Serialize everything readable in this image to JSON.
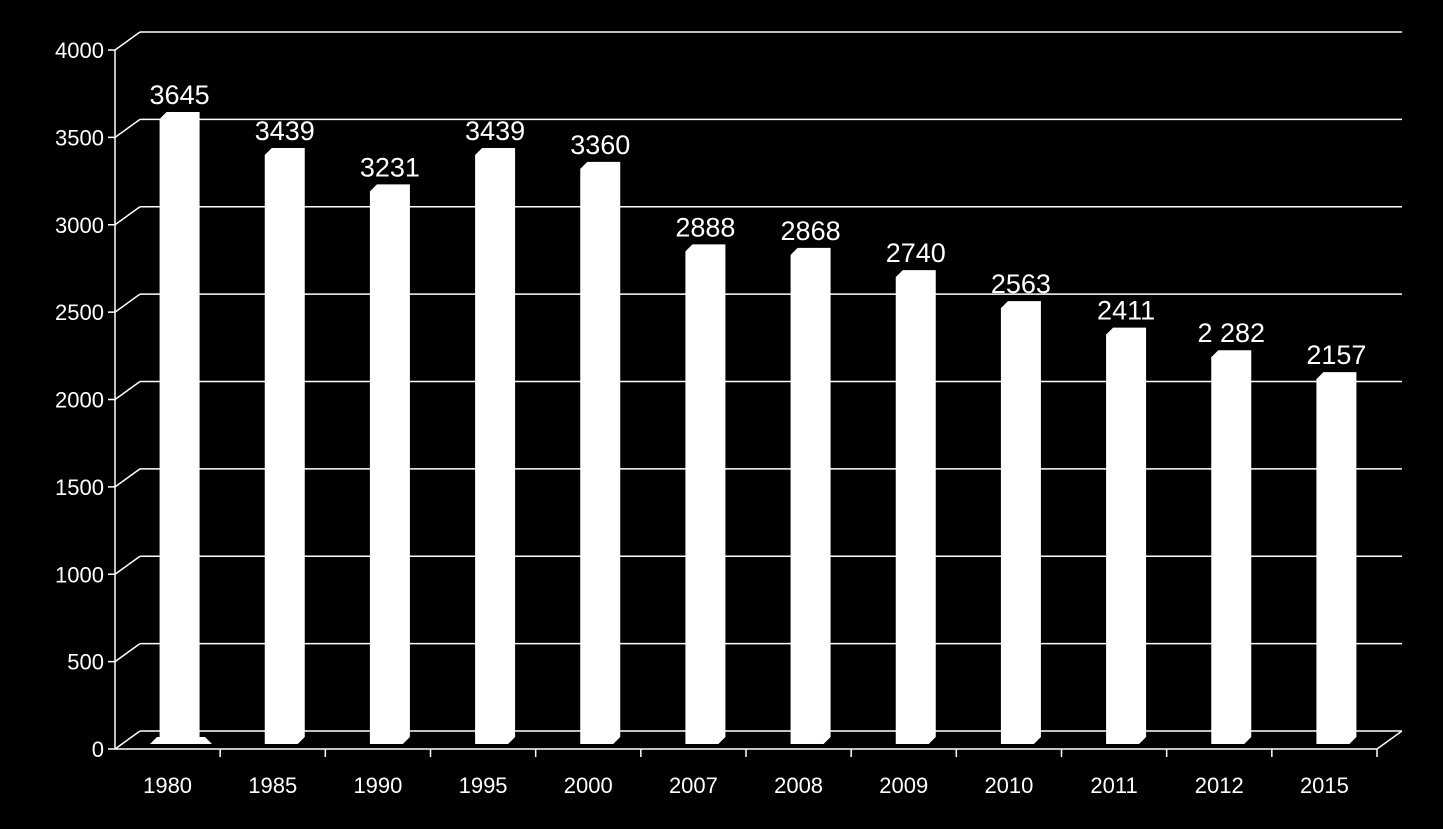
{
  "chart_data": {
    "type": "bar",
    "title": "",
    "xlabel": "",
    "ylabel": "",
    "categories": [
      "1980",
      "1985",
      "1990",
      "1995",
      "2000",
      "2007",
      "2008",
      "2009",
      "2010",
      "2011",
      "2012",
      "2015"
    ],
    "values": [
      3645,
      3439,
      3231,
      3439,
      3360,
      2888,
      2868,
      2740,
      2563,
      2411,
      2282,
      2157
    ],
    "data_labels": [
      "3645",
      "3439",
      "3231",
      "3439",
      "3360",
      "2888",
      "2868",
      "2740",
      "2563",
      "2411",
      "2 282",
      "2157"
    ],
    "ylim": [
      0,
      4000
    ],
    "yticks": [
      "0",
      "500",
      "1000",
      "1500",
      "2000",
      "2500",
      "3000",
      "3500",
      "4000"
    ],
    "grid": true,
    "legend": "none",
    "colors": {
      "background": "#000000",
      "bar": "#ffffff",
      "grid": "#ffffff",
      "text": "#ffffff"
    }
  }
}
